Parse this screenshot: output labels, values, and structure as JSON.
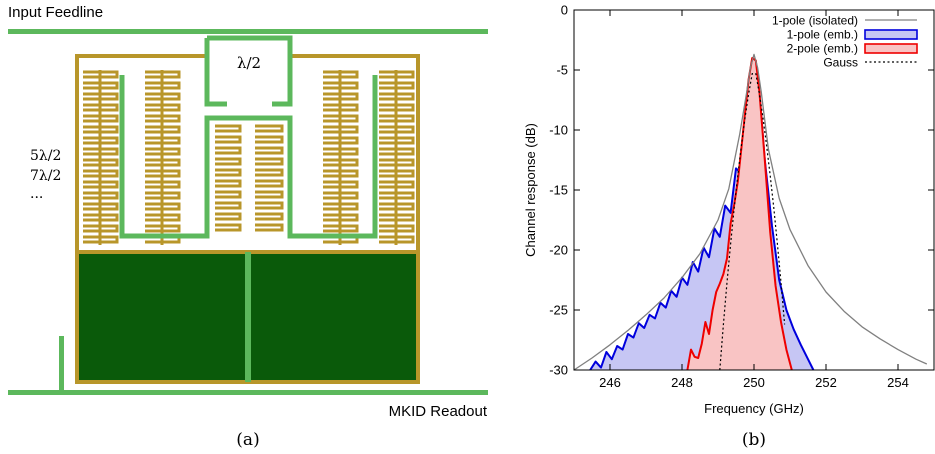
{
  "panel_a": {
    "feedline_label": "Input Feedline",
    "readout_label": "MKID Readout",
    "half_wave_label": "λ/2",
    "mode_labels": [
      "5λ/2",
      "7λ/2",
      "..."
    ],
    "caption": "(a)",
    "colors": {
      "feedline": "#5cb85c",
      "meander": "#b8962a",
      "absorber": "#0a5a0a"
    }
  },
  "panel_b": {
    "caption": "(b)"
  },
  "chart_data": {
    "type": "area",
    "title": "",
    "xlabel": "Frequency (GHz)",
    "ylabel": "Channel response (dB)",
    "xlim": [
      245,
      255
    ],
    "ylim": [
      -30,
      0
    ],
    "xticks": [
      246,
      248,
      250,
      252,
      254
    ],
    "yticks": [
      0,
      -5,
      -10,
      -15,
      -20,
      -25,
      -30
    ],
    "grid": false,
    "legend_position": "top-right",
    "series": [
      {
        "name": "1-pole (isolated)",
        "style": "line",
        "color": "#808080",
        "x": [
          245.0,
          245.5,
          246.0,
          246.5,
          247.0,
          247.5,
          248.0,
          248.5,
          249.0,
          249.3,
          249.6,
          249.8,
          249.9,
          250.0,
          250.1,
          250.2,
          250.4,
          250.7,
          251.0,
          251.5,
          252.0,
          252.5,
          253.0,
          253.5,
          254.0,
          254.5,
          254.8
        ],
        "y": [
          -30.0,
          -29.0,
          -27.9,
          -26.7,
          -25.4,
          -24.0,
          -22.3,
          -20.3,
          -17.5,
          -14.9,
          -10.4,
          -6.8,
          -4.8,
          -3.7,
          -4.8,
          -6.8,
          -11.6,
          -15.7,
          -18.3,
          -21.3,
          -23.5,
          -25.1,
          -26.4,
          -27.4,
          -28.3,
          -29.1,
          -29.5
        ]
      },
      {
        "name": "1-pole (emb.)",
        "style": "filled",
        "color": "#0000dd",
        "fill": "#c6c6f4",
        "x": [
          245.45,
          245.6,
          245.75,
          245.9,
          246.05,
          246.2,
          246.35,
          246.5,
          246.65,
          246.8,
          246.95,
          247.1,
          247.25,
          247.4,
          247.55,
          247.7,
          247.85,
          248.0,
          248.15,
          248.3,
          248.45,
          248.6,
          248.75,
          248.9,
          249.05,
          249.2,
          249.35,
          249.5,
          249.65,
          249.8,
          249.95,
          250.05,
          250.15,
          250.3,
          250.5,
          250.7,
          250.9,
          251.1,
          251.3,
          251.5,
          251.65
        ],
        "y": [
          -30.0,
          -29.3,
          -29.8,
          -28.5,
          -29.1,
          -28.0,
          -28.3,
          -27.0,
          -27.3,
          -26.1,
          -26.5,
          -25.4,
          -25.7,
          -24.4,
          -24.8,
          -23.4,
          -23.9,
          -22.3,
          -22.9,
          -21.0,
          -21.8,
          -19.8,
          -20.6,
          -18.2,
          -18.9,
          -16.3,
          -16.9,
          -13.2,
          -13.6,
          -8.6,
          -5.1,
          -5.4,
          -7.0,
          -12.5,
          -18.0,
          -22.5,
          -25.0,
          -26.6,
          -27.9,
          -29.1,
          -30.0
        ]
      },
      {
        "name": "2-pole (emb.)",
        "style": "filled",
        "color": "#ee0000",
        "fill": "#f9c4c4",
        "x": [
          248.15,
          248.25,
          248.35,
          248.45,
          248.55,
          248.65,
          248.75,
          248.85,
          248.95,
          249.05,
          249.15,
          249.25,
          249.35,
          249.45,
          249.55,
          249.65,
          249.75,
          249.85,
          249.95,
          250.05,
          250.15,
          250.3,
          250.45,
          250.6,
          250.75,
          250.9,
          251.05
        ],
        "y": [
          -30.0,
          -28.3,
          -28.9,
          -29.0,
          -27.8,
          -26.0,
          -27.0,
          -25.0,
          -23.5,
          -22.8,
          -22.0,
          -20.7,
          -17.8,
          -16.2,
          -14.3,
          -11.5,
          -8.6,
          -5.8,
          -4.0,
          -4.2,
          -6.8,
          -12.5,
          -18.5,
          -23.0,
          -26.0,
          -28.3,
          -30.0
        ]
      },
      {
        "name": "Gauss",
        "style": "dotted",
        "color": "#000000",
        "x": [
          249.05,
          249.15,
          249.25,
          249.35,
          249.45,
          249.55,
          249.65,
          249.75,
          249.85,
          249.95,
          250.05,
          250.15,
          250.25,
          250.35,
          250.45,
          250.55,
          250.65,
          250.75,
          250.85
        ],
        "y": [
          -30.0,
          -26.2,
          -22.7,
          -19.5,
          -16.5,
          -13.8,
          -11.3,
          -9.0,
          -7.0,
          -5.3,
          -5.3,
          -7.0,
          -9.0,
          -11.3,
          -13.8,
          -16.5,
          -19.5,
          -22.7,
          -26.2
        ]
      }
    ]
  }
}
